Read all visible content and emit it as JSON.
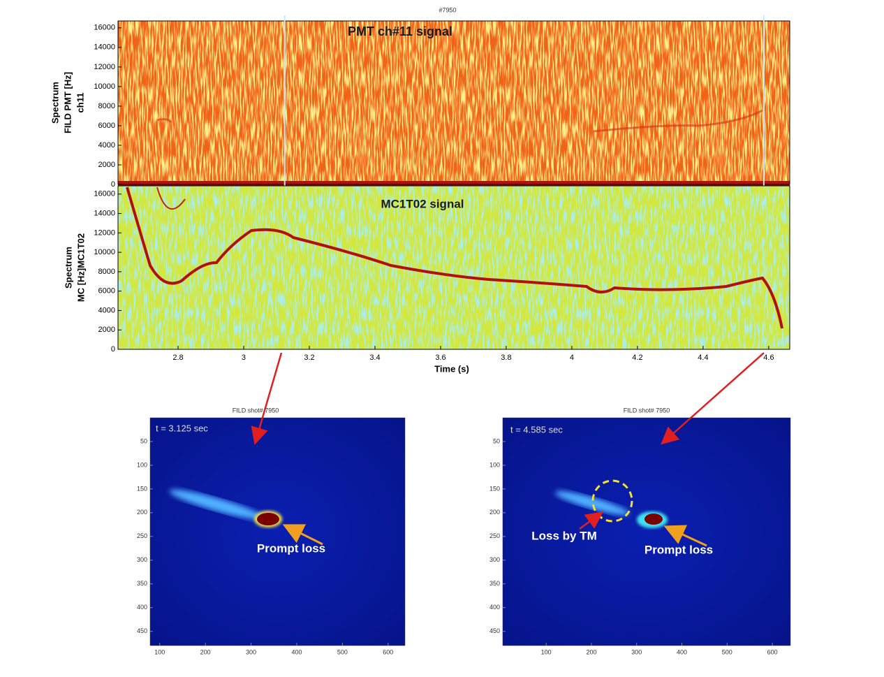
{
  "chart_data": [
    {
      "type": "spectrogram",
      "title": "#7950",
      "annotation": "PMT ch#11 signal",
      "ylabel": [
        "Spectrum",
        "FILD PMT [Hz]",
        "ch11"
      ],
      "xlim": [
        2.617,
        4.664
      ],
      "ylim": [
        0,
        16700
      ],
      "yticks": [
        0,
        2000,
        4000,
        6000,
        8000,
        10000,
        12000,
        14000,
        16000
      ],
      "markers": [
        3.125,
        4.585
      ]
    },
    {
      "type": "spectrogram",
      "annotation": "MC1T02 signal",
      "ylabel": [
        "Spectrum",
        "MC [Hz]MC1T02"
      ],
      "xlabel": "Time (s)",
      "xlim": [
        2.617,
        4.664
      ],
      "ylim": [
        0,
        16850
      ],
      "xticks": [
        2.8,
        3,
        3.2,
        3.4,
        3.6,
        3.8,
        4,
        4.2,
        4.4,
        4.6
      ],
      "yticks": [
        0,
        2000,
        4000,
        6000,
        8000,
        10000,
        12000,
        14000,
        16000
      ]
    },
    {
      "type": "image",
      "title": "FILD shot# 7950",
      "annotations": [
        "t = 3.125 sec",
        "Prompt loss"
      ],
      "xlim": [
        79,
        637
      ],
      "ylim": [
        0,
        480
      ],
      "y_inverted": true,
      "xticks": [
        100,
        200,
        300,
        400,
        500,
        600
      ],
      "yticks": [
        50,
        100,
        150,
        200,
        250,
        300,
        350,
        400,
        450
      ]
    },
    {
      "type": "image",
      "title": "FILD shot# 7950",
      "annotations": [
        "t = 4.585 sec",
        "Loss by TM",
        "Prompt loss"
      ],
      "xlim": [
        4,
        640
      ],
      "ylim": [
        0,
        480
      ],
      "y_inverted": true,
      "xticks": [
        100,
        200,
        300,
        400,
        500,
        600
      ],
      "yticks": [
        50,
        100,
        150,
        200,
        250,
        300,
        350,
        400,
        450
      ]
    }
  ]
}
